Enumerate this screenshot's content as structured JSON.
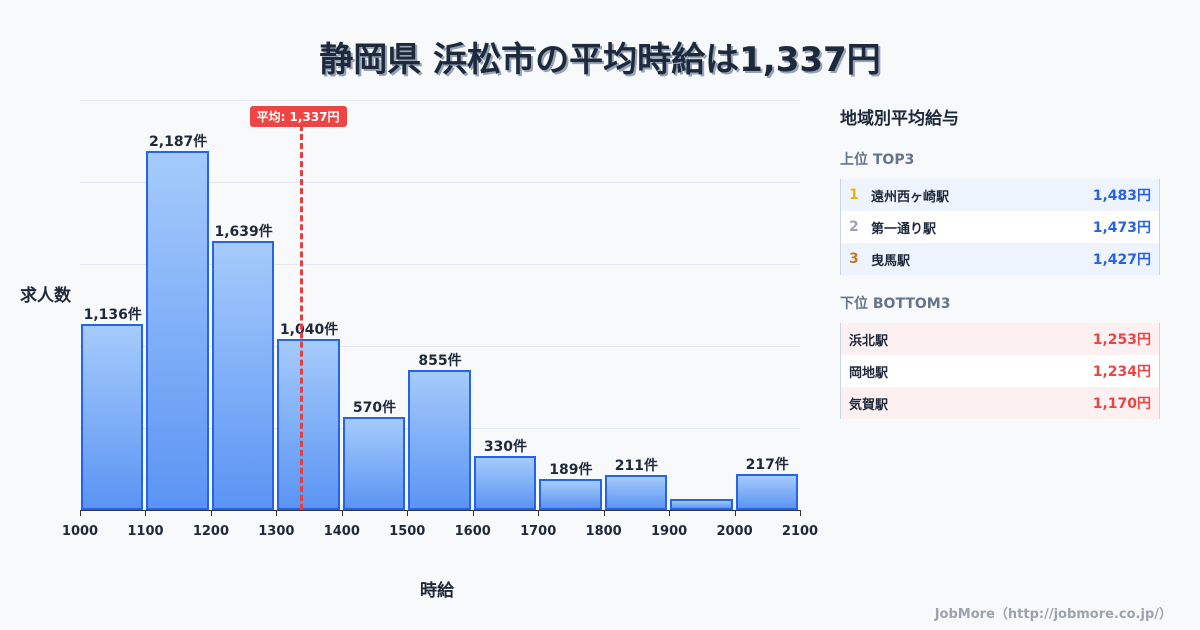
{
  "title": "静岡県 浜松市の平均時給は1,337円",
  "chart_data": {
    "type": "bar",
    "title": "静岡県 浜松市の平均時給は1,337円",
    "xlabel": "時給",
    "ylabel": "求人数",
    "categories": [
      "1000-1100",
      "1100-1200",
      "1200-1300",
      "1300-1400",
      "1400-1500",
      "1500-1600",
      "1600-1700",
      "1700-1800",
      "1800-1900",
      "1900-2000",
      "2000-2100"
    ],
    "values": [
      1136,
      2187,
      1639,
      1040,
      570,
      855,
      330,
      189,
      211,
      67,
      217
    ],
    "labels": [
      "1,136件",
      "2,187件",
      "1,639件",
      "1,040件",
      "570件",
      "855件",
      "330件",
      "189件",
      "211件",
      "",
      "217件"
    ],
    "x_ticks": [
      "1000",
      "1100",
      "1200",
      "1300",
      "1400",
      "1500",
      "1600",
      "1700",
      "1800",
      "1900",
      "2000",
      "2100"
    ],
    "ylim": [
      0,
      2500
    ],
    "grid": true,
    "average": {
      "value": 1337,
      "label": "平均: 1,337円"
    }
  },
  "panel": {
    "title": "地域別平均給与",
    "top_title": "上位 TOP3",
    "top": [
      {
        "rank": "1",
        "name": "遠州西ヶ崎駅",
        "value": "1,483円",
        "color": "#eab308"
      },
      {
        "rank": "2",
        "name": "第一通り駅",
        "value": "1,473円",
        "color": "#9ca3af"
      },
      {
        "rank": "3",
        "name": "曳馬駅",
        "value": "1,427円",
        "color": "#c2792f"
      }
    ],
    "bottom_title": "下位 BOTTOM3",
    "bottom": [
      {
        "name": "浜北駅",
        "value": "1,253円"
      },
      {
        "name": "岡地駅",
        "value": "1,234円"
      },
      {
        "name": "気賀駅",
        "value": "1,170円"
      }
    ]
  },
  "colors": {
    "bar": "#5b94f3",
    "bar_border": "#2563eb",
    "average": "#ef4444",
    "top_value": "#2563eb",
    "bottom_value": "#ef4444"
  },
  "footer": "JobMore（http://jobmore.co.jp/）"
}
